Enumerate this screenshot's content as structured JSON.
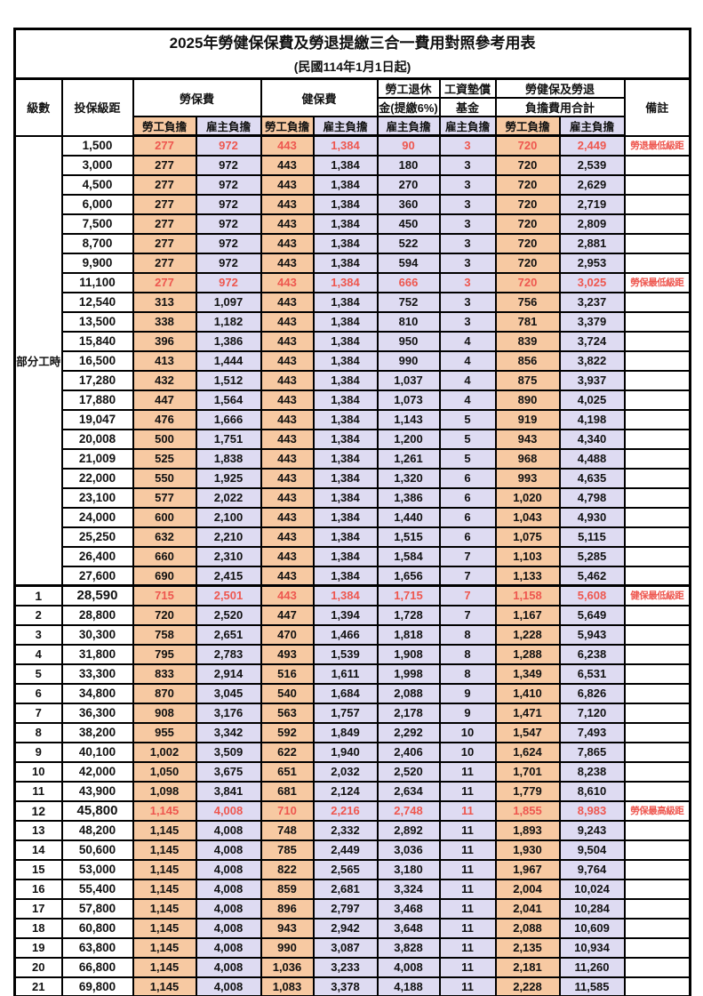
{
  "title": "2025年勞健保保費及勞退提繳三合一費用對照參考用表",
  "subtitle": "(民國114年1月1日起)",
  "header": {
    "level": "級數",
    "bracket": "投保級距",
    "labor_insurance": "勞保費",
    "health_insurance": "健保費",
    "pension_line1": "勞工退休",
    "pension_line2": "金(提繳6%)",
    "wage_fund_line1": "工資墊償",
    "wage_fund_line2": "基金",
    "total_line1": "勞健保及勞退",
    "total_line2": "負擔費用合計",
    "remark": "備註",
    "employee_share": "勞工負擔",
    "employer_share": "雇主負擔"
  },
  "part_time": {
    "label": "部分工時",
    "rowspan": 23
  },
  "colors": {
    "employee_bg": "#F7C9A2",
    "employer_bg": "#DEDBF2",
    "highlight_red": "#EE574F",
    "border": "#000000"
  },
  "rows": [
    {
      "level": null,
      "bracket": "1,500",
      "values": [
        "277",
        "972",
        "443",
        "1,384",
        "90",
        "3",
        "720",
        "2,449"
      ],
      "remark": "勞退最低級距",
      "red": true
    },
    {
      "level": null,
      "bracket": "3,000",
      "values": [
        "277",
        "972",
        "443",
        "1,384",
        "180",
        "3",
        "720",
        "2,539"
      ],
      "remark": ""
    },
    {
      "level": null,
      "bracket": "4,500",
      "values": [
        "277",
        "972",
        "443",
        "1,384",
        "270",
        "3",
        "720",
        "2,629"
      ],
      "remark": ""
    },
    {
      "level": null,
      "bracket": "6,000",
      "values": [
        "277",
        "972",
        "443",
        "1,384",
        "360",
        "3",
        "720",
        "2,719"
      ],
      "remark": ""
    },
    {
      "level": null,
      "bracket": "7,500",
      "values": [
        "277",
        "972",
        "443",
        "1,384",
        "450",
        "3",
        "720",
        "2,809"
      ],
      "remark": ""
    },
    {
      "level": null,
      "bracket": "8,700",
      "values": [
        "277",
        "972",
        "443",
        "1,384",
        "522",
        "3",
        "720",
        "2,881"
      ],
      "remark": ""
    },
    {
      "level": null,
      "bracket": "9,900",
      "values": [
        "277",
        "972",
        "443",
        "1,384",
        "594",
        "3",
        "720",
        "2,953"
      ],
      "remark": ""
    },
    {
      "level": null,
      "bracket": "11,100",
      "values": [
        "277",
        "972",
        "443",
        "1,384",
        "666",
        "3",
        "720",
        "3,025"
      ],
      "remark": "勞保最低級距",
      "red": true
    },
    {
      "level": null,
      "bracket": "12,540",
      "values": [
        "313",
        "1,097",
        "443",
        "1,384",
        "752",
        "3",
        "756",
        "3,237"
      ],
      "remark": ""
    },
    {
      "level": null,
      "bracket": "13,500",
      "values": [
        "338",
        "1,182",
        "443",
        "1,384",
        "810",
        "3",
        "781",
        "3,379"
      ],
      "remark": ""
    },
    {
      "level": null,
      "bracket": "15,840",
      "values": [
        "396",
        "1,386",
        "443",
        "1,384",
        "950",
        "4",
        "839",
        "3,724"
      ],
      "remark": ""
    },
    {
      "level": null,
      "bracket": "16,500",
      "values": [
        "413",
        "1,444",
        "443",
        "1,384",
        "990",
        "4",
        "856",
        "3,822"
      ],
      "remark": ""
    },
    {
      "level": null,
      "bracket": "17,280",
      "values": [
        "432",
        "1,512",
        "443",
        "1,384",
        "1,037",
        "4",
        "875",
        "3,937"
      ],
      "remark": ""
    },
    {
      "level": null,
      "bracket": "17,880",
      "values": [
        "447",
        "1,564",
        "443",
        "1,384",
        "1,073",
        "4",
        "890",
        "4,025"
      ],
      "remark": ""
    },
    {
      "level": null,
      "bracket": "19,047",
      "values": [
        "476",
        "1,666",
        "443",
        "1,384",
        "1,143",
        "5",
        "919",
        "4,198"
      ],
      "remark": ""
    },
    {
      "level": null,
      "bracket": "20,008",
      "values": [
        "500",
        "1,751",
        "443",
        "1,384",
        "1,200",
        "5",
        "943",
        "4,340"
      ],
      "remark": ""
    },
    {
      "level": null,
      "bracket": "21,009",
      "values": [
        "525",
        "1,838",
        "443",
        "1,384",
        "1,261",
        "5",
        "968",
        "4,488"
      ],
      "remark": ""
    },
    {
      "level": null,
      "bracket": "22,000",
      "values": [
        "550",
        "1,925",
        "443",
        "1,384",
        "1,320",
        "6",
        "993",
        "4,635"
      ],
      "remark": ""
    },
    {
      "level": null,
      "bracket": "23,100",
      "values": [
        "577",
        "2,022",
        "443",
        "1,384",
        "1,386",
        "6",
        "1,020",
        "4,798"
      ],
      "remark": ""
    },
    {
      "level": null,
      "bracket": "24,000",
      "values": [
        "600",
        "2,100",
        "443",
        "1,384",
        "1,440",
        "6",
        "1,043",
        "4,930"
      ],
      "remark": ""
    },
    {
      "level": null,
      "bracket": "25,250",
      "values": [
        "632",
        "2,210",
        "443",
        "1,384",
        "1,515",
        "6",
        "1,075",
        "5,115"
      ],
      "remark": ""
    },
    {
      "level": null,
      "bracket": "26,400",
      "values": [
        "660",
        "2,310",
        "443",
        "1,384",
        "1,584",
        "7",
        "1,103",
        "5,285"
      ],
      "remark": ""
    },
    {
      "level": null,
      "bracket": "27,600",
      "values": [
        "690",
        "2,415",
        "443",
        "1,384",
        "1,656",
        "7",
        "1,133",
        "5,462"
      ],
      "remark": ""
    },
    {
      "level": "1",
      "bracket": "28,590",
      "values": [
        "715",
        "2,501",
        "443",
        "1,384",
        "1,715",
        "7",
        "1,158",
        "5,608"
      ],
      "remark": "健保最低級距",
      "red": true,
      "em": true,
      "section": true
    },
    {
      "level": "2",
      "bracket": "28,800",
      "values": [
        "720",
        "2,520",
        "447",
        "1,394",
        "1,728",
        "7",
        "1,167",
        "5,649"
      ],
      "remark": ""
    },
    {
      "level": "3",
      "bracket": "30,300",
      "values": [
        "758",
        "2,651",
        "470",
        "1,466",
        "1,818",
        "8",
        "1,228",
        "5,943"
      ],
      "remark": ""
    },
    {
      "level": "4",
      "bracket": "31,800",
      "values": [
        "795",
        "2,783",
        "493",
        "1,539",
        "1,908",
        "8",
        "1,288",
        "6,238"
      ],
      "remark": ""
    },
    {
      "level": "5",
      "bracket": "33,300",
      "values": [
        "833",
        "2,914",
        "516",
        "1,611",
        "1,998",
        "8",
        "1,349",
        "6,531"
      ],
      "remark": ""
    },
    {
      "level": "6",
      "bracket": "34,800",
      "values": [
        "870",
        "3,045",
        "540",
        "1,684",
        "2,088",
        "9",
        "1,410",
        "6,826"
      ],
      "remark": ""
    },
    {
      "level": "7",
      "bracket": "36,300",
      "values": [
        "908",
        "3,176",
        "563",
        "1,757",
        "2,178",
        "9",
        "1,471",
        "7,120"
      ],
      "remark": ""
    },
    {
      "level": "8",
      "bracket": "38,200",
      "values": [
        "955",
        "3,342",
        "592",
        "1,849",
        "2,292",
        "10",
        "1,547",
        "7,493"
      ],
      "remark": ""
    },
    {
      "level": "9",
      "bracket": "40,100",
      "values": [
        "1,002",
        "3,509",
        "622",
        "1,940",
        "2,406",
        "10",
        "1,624",
        "7,865"
      ],
      "remark": ""
    },
    {
      "level": "10",
      "bracket": "42,000",
      "values": [
        "1,050",
        "3,675",
        "651",
        "2,032",
        "2,520",
        "11",
        "1,701",
        "8,238"
      ],
      "remark": ""
    },
    {
      "level": "11",
      "bracket": "43,900",
      "values": [
        "1,098",
        "3,841",
        "681",
        "2,124",
        "2,634",
        "11",
        "1,779",
        "8,610"
      ],
      "remark": ""
    },
    {
      "level": "12",
      "bracket": "45,800",
      "values": [
        "1,145",
        "4,008",
        "710",
        "2,216",
        "2,748",
        "11",
        "1,855",
        "8,983"
      ],
      "remark": "勞保最高級距",
      "red": true,
      "em": true
    },
    {
      "level": "13",
      "bracket": "48,200",
      "values": [
        "1,145",
        "4,008",
        "748",
        "2,332",
        "2,892",
        "11",
        "1,893",
        "9,243"
      ],
      "remark": ""
    },
    {
      "level": "14",
      "bracket": "50,600",
      "values": [
        "1,145",
        "4,008",
        "785",
        "2,449",
        "3,036",
        "11",
        "1,930",
        "9,504"
      ],
      "remark": ""
    },
    {
      "level": "15",
      "bracket": "53,000",
      "values": [
        "1,145",
        "4,008",
        "822",
        "2,565",
        "3,180",
        "11",
        "1,967",
        "9,764"
      ],
      "remark": ""
    },
    {
      "level": "16",
      "bracket": "55,400",
      "values": [
        "1,145",
        "4,008",
        "859",
        "2,681",
        "3,324",
        "11",
        "2,004",
        "10,024"
      ],
      "remark": ""
    },
    {
      "level": "17",
      "bracket": "57,800",
      "values": [
        "1,145",
        "4,008",
        "896",
        "2,797",
        "3,468",
        "11",
        "2,041",
        "10,284"
      ],
      "remark": ""
    },
    {
      "level": "18",
      "bracket": "60,800",
      "values": [
        "1,145",
        "4,008",
        "943",
        "2,942",
        "3,648",
        "11",
        "2,088",
        "10,609"
      ],
      "remark": ""
    },
    {
      "level": "19",
      "bracket": "63,800",
      "values": [
        "1,145",
        "4,008",
        "990",
        "3,087",
        "3,828",
        "11",
        "2,135",
        "10,934"
      ],
      "remark": ""
    },
    {
      "level": "20",
      "bracket": "66,800",
      "values": [
        "1,145",
        "4,008",
        "1,036",
        "3,233",
        "4,008",
        "11",
        "2,181",
        "11,260"
      ],
      "remark": ""
    },
    {
      "level": "21",
      "bracket": "69,800",
      "values": [
        "1,145",
        "4,008",
        "1,083",
        "3,378",
        "4,188",
        "11",
        "2,228",
        "11,585"
      ],
      "remark": ""
    }
  ]
}
